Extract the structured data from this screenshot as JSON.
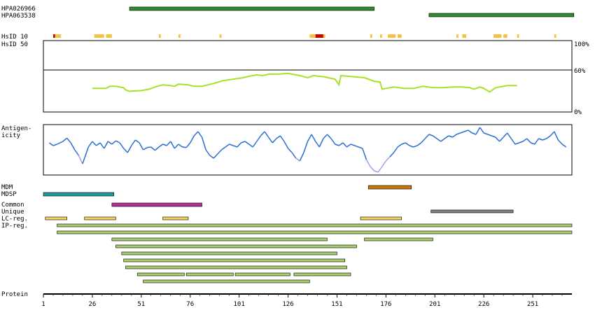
{
  "chart_data": {
    "type": "protein-feature-map",
    "protein_length": 270,
    "colors": {
      "antibody": "#2e8b2e",
      "hsid_high": "#cc0000",
      "hsid_mid": "#f5c242",
      "identity_line": "#a8e02a",
      "antigenicity": "#2a6fcf",
      "antigenicity_low": "#a0a0e8",
      "mdm": "#c8780a",
      "mdsp": "#1a9a9a",
      "common": "#b0309a",
      "unique": "#808080",
      "lc": "#f5d060",
      "ip": "#a8cc70"
    },
    "antibodies": [
      {
        "label": "HPA026966",
        "start": 45,
        "end": 170
      },
      {
        "label": "HPA063538",
        "start": 198,
        "end": 272
      }
    ],
    "hsid": {
      "label_10": "HsID 10",
      "label_50": "HsID 50",
      "segments": [
        {
          "start": 6,
          "end": 7,
          "level": "high"
        },
        {
          "start": 7,
          "end": 10,
          "level": "mid"
        },
        {
          "start": 27,
          "end": 32,
          "level": "mid"
        },
        {
          "start": 33,
          "end": 36,
          "level": "mid"
        },
        {
          "start": 60,
          "end": 61,
          "level": "mid"
        },
        {
          "start": 70,
          "end": 71,
          "level": "mid"
        },
        {
          "start": 91,
          "end": 92,
          "level": "mid"
        },
        {
          "start": 137,
          "end": 140,
          "level": "mid"
        },
        {
          "start": 140,
          "end": 144,
          "level": "high"
        },
        {
          "start": 144,
          "end": 145,
          "level": "mid"
        },
        {
          "start": 168,
          "end": 169,
          "level": "mid"
        },
        {
          "start": 173,
          "end": 174,
          "level": "mid"
        },
        {
          "start": 177,
          "end": 181,
          "level": "mid"
        },
        {
          "start": 182,
          "end": 184,
          "level": "mid"
        },
        {
          "start": 212,
          "end": 213,
          "level": "mid"
        },
        {
          "start": 215,
          "end": 217,
          "level": "mid"
        },
        {
          "start": 231,
          "end": 235,
          "level": "mid"
        },
        {
          "start": 236,
          "end": 238,
          "level": "mid"
        },
        {
          "start": 243,
          "end": 244,
          "level": "mid"
        },
        {
          "start": 262,
          "end": 263,
          "level": "mid"
        }
      ]
    },
    "identity": {
      "y_labels": [
        "100%",
        "60%",
        "0%"
      ],
      "reference_line": 60,
      "x": [
        26,
        33,
        35,
        38,
        42,
        43,
        45,
        51,
        55,
        58,
        62,
        66,
        68,
        70,
        75,
        78,
        82,
        88,
        93,
        98,
        103,
        106,
        110,
        113,
        116,
        121,
        126,
        132,
        136,
        139,
        145,
        150,
        152,
        153,
        157,
        165,
        170,
        173,
        174,
        176,
        180,
        185,
        190,
        195,
        200,
        205,
        210,
        215,
        219,
        221,
        224,
        226,
        229,
        232,
        234,
        238,
        243
      ],
      "y": [
        33,
        33,
        36,
        36,
        34,
        31,
        29,
        30,
        32,
        35,
        38,
        37,
        36,
        39,
        38,
        36,
        36,
        40,
        44,
        46,
        48,
        50,
        52,
        51,
        53,
        53,
        54,
        51,
        48,
        51,
        49,
        46,
        38,
        51,
        50,
        48,
        43,
        42,
        32,
        33,
        35,
        33,
        33,
        36,
        34,
        34,
        35,
        35,
        34,
        32,
        35,
        33,
        28,
        34,
        35,
        37,
        37
      ]
    },
    "antigenicity": {
      "label": "Antigen- icity",
      "x": [
        4,
        6,
        8,
        11,
        13,
        15,
        17,
        19,
        21,
        24,
        26,
        28,
        30,
        32,
        34,
        36,
        38,
        40,
        42,
        44,
        46,
        48,
        50,
        52,
        54,
        56,
        58,
        60,
        62,
        64,
        66,
        68,
        70,
        72,
        74,
        76,
        78,
        80,
        82,
        84,
        86,
        88,
        90,
        92,
        94,
        96,
        98,
        100,
        102,
        104,
        106,
        108,
        110,
        112,
        114,
        116,
        118,
        120,
        122,
        124,
        126,
        128,
        130,
        132,
        134,
        136,
        138,
        140,
        142,
        144,
        146,
        148,
        150,
        152,
        154,
        156,
        158,
        160,
        162,
        164,
        166,
        168,
        170,
        172,
        174,
        176,
        178,
        180,
        182,
        184,
        186,
        188,
        190,
        192,
        194,
        196,
        198,
        200,
        202,
        204,
        206,
        208,
        210,
        212,
        214,
        216,
        218,
        220,
        222,
        224,
        226,
        228,
        230,
        232,
        234,
        236,
        238,
        240,
        242,
        244,
        246,
        248,
        250,
        252,
        254,
        256,
        258,
        260,
        262,
        264,
        266,
        268
      ],
      "y": [
        0.55,
        0.45,
        0.5,
        0.6,
        0.72,
        0.55,
        0.3,
        0.1,
        -0.2,
        0.4,
        0.6,
        0.45,
        0.55,
        0.35,
        0.6,
        0.5,
        0.62,
        0.55,
        0.35,
        0.2,
        0.45,
        0.65,
        0.55,
        0.3,
        0.38,
        0.4,
        0.28,
        0.4,
        0.5,
        0.45,
        0.6,
        0.35,
        0.5,
        0.4,
        0.38,
        0.55,
        0.8,
        0.95,
        0.75,
        0.3,
        0.1,
        0.0,
        0.15,
        0.3,
        0.4,
        0.5,
        0.45,
        0.4,
        0.55,
        0.6,
        0.5,
        0.4,
        0.6,
        0.8,
        0.95,
        0.75,
        0.55,
        0.7,
        0.8,
        0.6,
        0.35,
        0.2,
        0.0,
        -0.1,
        0.2,
        0.6,
        0.85,
        0.6,
        0.4,
        0.7,
        0.85,
        0.7,
        0.5,
        0.45,
        0.55,
        0.4,
        0.5,
        0.45,
        0.4,
        0.35,
        -0.05,
        -0.3,
        -0.45,
        -0.5,
        -0.3,
        -0.1,
        0.05,
        0.2,
        0.4,
        0.5,
        0.55,
        0.45,
        0.4,
        0.45,
        0.55,
        0.7,
        0.85,
        0.8,
        0.7,
        0.6,
        0.7,
        0.8,
        0.75,
        0.85,
        0.9,
        0.95,
        1.0,
        0.9,
        0.85,
        1.1,
        0.9,
        0.85,
        0.8,
        0.75,
        0.6,
        0.75,
        0.9,
        0.7,
        0.5,
        0.55,
        0.6,
        0.7,
        0.55,
        0.5,
        0.7,
        0.65,
        0.7,
        0.8,
        0.95,
        0.65,
        0.5,
        0.4
      ]
    },
    "regions": {
      "labels": {
        "mdm": "MDM",
        "mdsp": "MDSP",
        "common": "Common",
        "unique": "Unique",
        "lc": "LC-reg.",
        "ip": "IP-reg."
      },
      "mdm": [
        {
          "start": 167,
          "end": 189
        }
      ],
      "mdsp": [
        {
          "start": 1,
          "end": 37
        }
      ],
      "common": [
        {
          "start": 36,
          "end": 82
        }
      ],
      "unique": [
        {
          "start": 199,
          "end": 241
        }
      ],
      "lc": [
        {
          "start": 2,
          "end": 13
        },
        {
          "start": 22,
          "end": 38
        },
        {
          "start": 62,
          "end": 75
        },
        {
          "start": 163,
          "end": 184
        }
      ],
      "ip_rows": [
        [
          {
            "start": 8,
            "end": 271
          }
        ],
        [
          {
            "start": 8,
            "end": 271
          }
        ],
        [
          {
            "start": 36,
            "end": 146
          },
          {
            "start": 165,
            "end": 200
          }
        ],
        [
          {
            "start": 38,
            "end": 161
          }
        ],
        [
          {
            "start": 41,
            "end": 151
          }
        ],
        [
          {
            "start": 42,
            "end": 155
          }
        ],
        [
          {
            "start": 43,
            "end": 156
          }
        ],
        [
          {
            "start": 49,
            "end": 73
          },
          {
            "start": 74,
            "end": 98
          },
          {
            "start": 99,
            "end": 127
          },
          {
            "start": 129,
            "end": 158
          }
        ],
        [
          {
            "start": 52,
            "end": 137
          }
        ]
      ]
    },
    "protein_axis": {
      "label": "Protein",
      "ticks": [
        1,
        26,
        51,
        76,
        101,
        126,
        151,
        176,
        201,
        226,
        251
      ]
    }
  }
}
